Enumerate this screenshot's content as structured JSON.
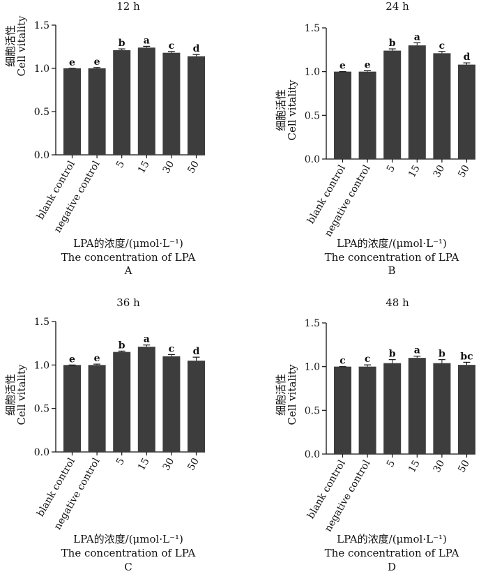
{
  "panels": [
    {
      "panel_label": "A",
      "xlabel_cn": "LPA的浓度/(μmol·L⁻¹)",
      "xlabel_en": "The concentration of LPA",
      "ylabel_cn": "细胞活性",
      "ylabel_en": "Cell vitality"
    },
    {
      "panel_label": "B",
      "xlabel_cn": "LPA的浓度/(μmol·L⁻¹)",
      "xlabel_en": "The concentration of LPA",
      "ylabel_cn": "细胞活性",
      "ylabel_en": "Cell vitality"
    },
    {
      "panel_label": "C",
      "xlabel_cn": "LPA的浓度/(μmol·L⁻¹)",
      "xlabel_en": "The concentration of LPA",
      "ylabel_cn": "细胞活性",
      "ylabel_en": "Cell vitality"
    },
    {
      "panel_label": "D",
      "xlabel_cn": "LPA的浓度/(μmol·L⁻¹)",
      "xlabel_en": "The concentration of LPA",
      "ylabel_cn": "细胞活性",
      "ylabel_en": "Cell vitality"
    }
  ],
  "colors": {
    "bar": "#3d3d3d",
    "axis": "#111111"
  },
  "chart_data": [
    {
      "type": "bar",
      "title": "12 h",
      "xlabel": "LPA的浓度/(μmol·L⁻¹) The concentration of LPA",
      "ylabel": "细胞活性 Cell vitality",
      "categories": [
        "blank control",
        "negative control",
        "5",
        "15",
        "30",
        "50"
      ],
      "values": [
        1.0,
        1.0,
        1.21,
        1.24,
        1.18,
        1.14
      ],
      "errors": [
        0.0,
        0.01,
        0.015,
        0.015,
        0.015,
        0.02
      ],
      "sig_letters": [
        "e",
        "e",
        "b",
        "a",
        "c",
        "d"
      ],
      "ylim": [
        0,
        1.5
      ],
      "yticks": [
        "0.0",
        "0.5",
        "1.0",
        "1.5"
      ]
    },
    {
      "type": "bar",
      "title": "24 h",
      "xlabel": "LPA的浓度/(μmol·L⁻¹) The concentration of LPA",
      "ylabel": "细胞活性 Cell vitality",
      "categories": [
        "blank control",
        "negative control",
        "5",
        "15",
        "30",
        "50"
      ],
      "values": [
        1.0,
        1.0,
        1.24,
        1.3,
        1.21,
        1.08
      ],
      "errors": [
        0.0,
        0.01,
        0.02,
        0.03,
        0.02,
        0.02
      ],
      "sig_letters": [
        "e",
        "e",
        "b",
        "a",
        "c",
        "d"
      ],
      "ylim": [
        0,
        1.5
      ],
      "yticks": [
        "0.0",
        "0.5",
        "1.0",
        "1.5"
      ]
    },
    {
      "type": "bar",
      "title": "36 h",
      "xlabel": "LPA的浓度/(μmol·L⁻¹) The concentration of LPA",
      "ylabel": "细胞活性 Cell vitality",
      "categories": [
        "blank control",
        "negative control",
        "5",
        "15",
        "30",
        "50"
      ],
      "values": [
        1.0,
        1.0,
        1.15,
        1.21,
        1.1,
        1.05
      ],
      "errors": [
        0.0,
        0.01,
        0.01,
        0.02,
        0.02,
        0.04
      ],
      "sig_letters": [
        "e",
        "e",
        "b",
        "a",
        "c",
        "d"
      ],
      "ylim": [
        0,
        1.5
      ],
      "yticks": [
        "0.0",
        "0.5",
        "1.0",
        "1.5"
      ]
    },
    {
      "type": "bar",
      "title": "48 h",
      "xlabel": "LPA的浓度/(μmol·L⁻¹) The concentration of LPA",
      "ylabel": "细胞活性 Cell vitality",
      "categories": [
        "blank control",
        "negative control",
        "5",
        "15",
        "30",
        "50"
      ],
      "values": [
        1.0,
        1.0,
        1.04,
        1.1,
        1.04,
        1.02
      ],
      "errors": [
        0.0,
        0.02,
        0.04,
        0.02,
        0.04,
        0.03
      ],
      "sig_letters": [
        "c",
        "c",
        "b",
        "a",
        "b",
        "bc"
      ],
      "ylim": [
        0,
        1.5
      ],
      "yticks": [
        "0.0",
        "0.5",
        "1.0",
        "1.5"
      ]
    }
  ]
}
